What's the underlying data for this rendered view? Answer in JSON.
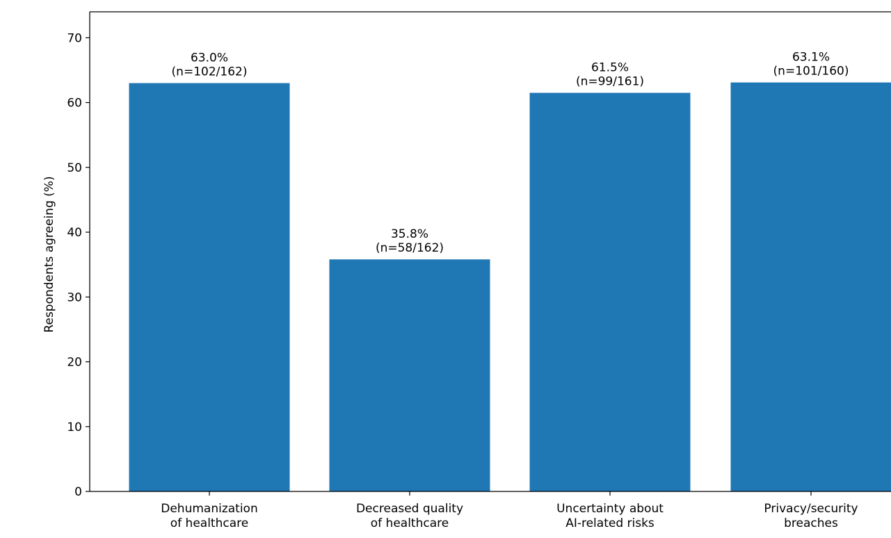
{
  "chart_data": {
    "type": "bar",
    "title": "",
    "xlabel": "",
    "ylabel": "Respondents agreeing (%)",
    "ylim": [
      0,
      74
    ],
    "yticks": [
      0,
      10,
      20,
      30,
      40,
      50,
      60,
      70
    ],
    "grid": false,
    "categories": [
      [
        "Dehumanization",
        "of healthcare"
      ],
      [
        "Decreased quality",
        "of healthcare"
      ],
      [
        "Uncertainty about",
        "AI-related risks"
      ],
      [
        "Privacy/security",
        "breaches"
      ]
    ],
    "values": [
      63.0,
      35.8,
      61.5,
      63.1
    ],
    "data_labels": [
      [
        "63.0%",
        "(n=102/162)"
      ],
      [
        "35.8%",
        "(n=58/162)"
      ],
      [
        "61.5%",
        "(n=99/161)"
      ],
      [
        "63.1%",
        "(n=101/160)"
      ]
    ],
    "bar_color": "#1f77b4"
  }
}
